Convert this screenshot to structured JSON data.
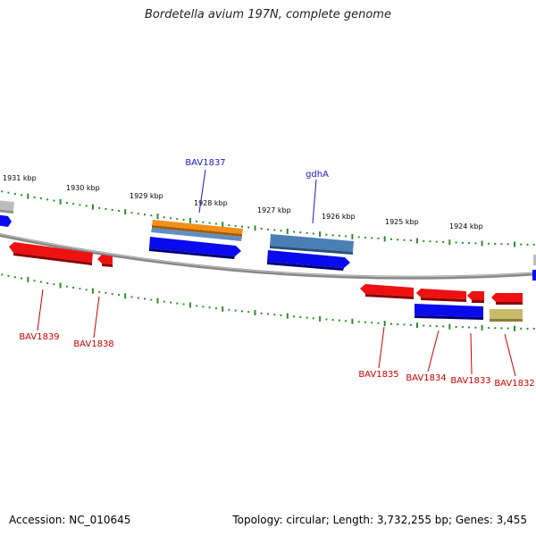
{
  "title": "Bordetella avium 197N, complete genome",
  "footer": {
    "accession": "Accession: NC_010645",
    "summary": "Topology: circular; Length: 3,732,255 bp; Genes: 3,455"
  },
  "colors": {
    "forward_label": "#1a1acc",
    "reverse_label": "#cc0000",
    "tick": "#2e8b2e",
    "backbone": "#888888",
    "gene_blue": "#0a0aee",
    "gene_red": "#ee1111",
    "gene_orange": "#f0901a",
    "gene_steel": "#4a7fb5",
    "gene_grey": "#bdbdbd",
    "gene_khaki": "#c8bb6a"
  },
  "kbp_labels": [
    "1931 kbp",
    "1930 kbp",
    "1929 kbp",
    "1928 kbp",
    "1927 kbp",
    "1926 kbp",
    "1925 kbp",
    "1924 kbp"
  ],
  "forward_genes": [
    {
      "name": "BAV1837",
      "color": "orange"
    },
    {
      "name": "gdhA",
      "color": "steel"
    }
  ],
  "reverse_genes": [
    {
      "name": "BAV1839",
      "color": "red"
    },
    {
      "name": "BAV1838",
      "color": "red"
    },
    {
      "name": "BAV1835",
      "color": "red"
    },
    {
      "name": "BAV1834",
      "color": "blue"
    },
    {
      "name": "BAV1833",
      "color": "red"
    },
    {
      "name": "BAV1832",
      "color": "khaki"
    }
  ]
}
